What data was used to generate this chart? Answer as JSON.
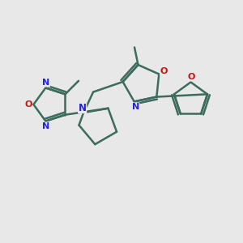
{
  "background_color": "#e8e8e8",
  "bond_color": "#3d6b5e",
  "N_color": "#2222dd",
  "O_color": "#cc1111",
  "line_width": 1.8,
  "figsize": [
    3.0,
    3.0
  ],
  "dpi": 100,
  "xlim": [
    0,
    10
  ],
  "ylim": [
    0,
    10
  ]
}
